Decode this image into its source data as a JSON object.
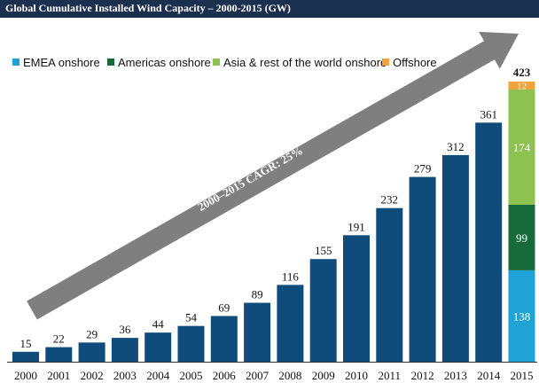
{
  "title": "Global Cumulative Installed Wind Capacity – 2000-2015 (GW)",
  "annotation": "2000–2015 CAGR: 25%",
  "colors": {
    "bar": "#0f4c7c",
    "emea": "#1fa3d6",
    "americas": "#176a3a",
    "asia": "#8cc24f",
    "offshore": "#f2a33a",
    "arrow": "#7f7f7f",
    "title_bg": "#1b2f4e"
  },
  "legend": [
    {
      "label": "EMEA onshore",
      "color": "#1fa3d6"
    },
    {
      "label": "Americas onshore",
      "color": "#176a3a"
    },
    {
      "label": "Asia & rest of the world onshore",
      "color": "#8cc24f"
    },
    {
      "label": "Offshore",
      "color": "#f2a33a"
    }
  ],
  "chart_data": {
    "type": "bar",
    "title": "Global Cumulative Installed Wind Capacity – 2000-2015 (GW)",
    "categories": [
      "2000",
      "2001",
      "2002",
      "2003",
      "2004",
      "2005",
      "2006",
      "2007",
      "2008",
      "2009",
      "2010",
      "2011",
      "2012",
      "2013",
      "2014",
      "2015"
    ],
    "values": [
      15,
      22,
      29,
      36,
      44,
      54,
      69,
      89,
      116,
      155,
      191,
      232,
      279,
      312,
      361,
      423
    ],
    "value_labels": [
      "15",
      "22",
      "29",
      "36",
      "44",
      "54",
      "69",
      "89",
      "116",
      "155",
      "191",
      "232",
      "279",
      "312",
      "361",
      "423"
    ],
    "stacked_2015": [
      {
        "name": "EMEA onshore",
        "value": 138
      },
      {
        "name": "Americas onshore",
        "value": 99
      },
      {
        "name": "Asia & rest of the world onshore",
        "value": 174
      },
      {
        "name": "Offshore",
        "value": 12
      }
    ],
    "ylim": [
      0,
      423
    ],
    "grid": false,
    "legend_position": "top-left"
  }
}
